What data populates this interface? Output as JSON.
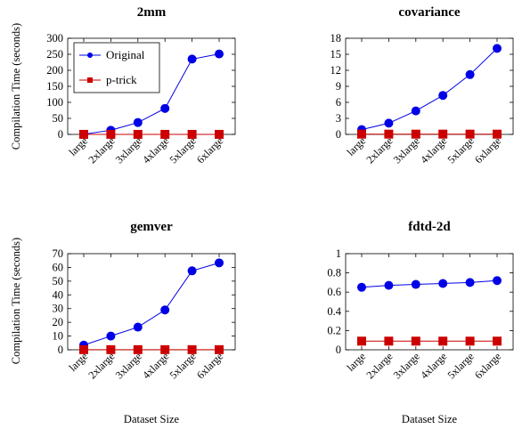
{
  "figure": {
    "ylabel": "Compilation Time (seconds)",
    "xlabel": "Dataset Size",
    "colors": {
      "original": "#0000e6",
      "ptrick": "#cc0000"
    }
  },
  "chart_data": [
    {
      "type": "line",
      "title": "2mm",
      "categories": [
        "large",
        "2xlarge",
        "3xlarge",
        "4xlarge",
        "5xlarge",
        "6xlarge"
      ],
      "series": [
        {
          "name": "Original",
          "values": [
            0.5,
            13,
            37,
            81,
            235,
            251
          ]
        },
        {
          "name": "p-trick",
          "values": [
            0.1,
            0.1,
            0.1,
            0.1,
            0.1,
            0.1
          ]
        }
      ],
      "yticks": [
        0,
        50,
        100,
        150,
        200,
        250,
        300
      ],
      "ylim": [
        0,
        300
      ],
      "legend": "top-left"
    },
    {
      "type": "line",
      "title": "covariance",
      "categories": [
        "large",
        "2xlarge",
        "3xlarge",
        "4xlarge",
        "5xlarge",
        "6xlarge"
      ],
      "series": [
        {
          "name": "Original",
          "values": [
            0.9,
            2.1,
            4.4,
            7.3,
            11.2,
            16.1
          ]
        },
        {
          "name": "p-trick",
          "values": [
            0.05,
            0.05,
            0.05,
            0.05,
            0.05,
            0.05
          ]
        }
      ],
      "yticks": [
        0,
        3,
        6,
        9,
        12,
        15,
        18
      ],
      "ylim": [
        0,
        18
      ]
    },
    {
      "type": "line",
      "title": "gemver",
      "categories": [
        "large",
        "2xlarge",
        "3xlarge",
        "4xlarge",
        "5xlarge",
        "6xlarge"
      ],
      "series": [
        {
          "name": "Original",
          "values": [
            3.4,
            10,
            16.5,
            29,
            57.5,
            63.3
          ]
        },
        {
          "name": "p-trick",
          "values": [
            0.1,
            0.1,
            0.1,
            0.1,
            0.1,
            0.1
          ]
        }
      ],
      "yticks": [
        0,
        10,
        20,
        30,
        40,
        50,
        60,
        70
      ],
      "ylim": [
        0,
        70
      ]
    },
    {
      "type": "line",
      "title": "fdtd-2d",
      "categories": [
        "large",
        "2xlarge",
        "3xlarge",
        "4xlarge",
        "5xlarge",
        "6xlarge"
      ],
      "series": [
        {
          "name": "Original",
          "values": [
            0.65,
            0.67,
            0.68,
            0.69,
            0.7,
            0.72
          ]
        },
        {
          "name": "p-trick",
          "values": [
            0.09,
            0.09,
            0.09,
            0.09,
            0.09,
            0.09
          ]
        }
      ],
      "yticks": [
        0,
        0.2,
        0.4,
        0.6,
        0.8,
        1
      ],
      "ylim": [
        0,
        1
      ]
    }
  ]
}
